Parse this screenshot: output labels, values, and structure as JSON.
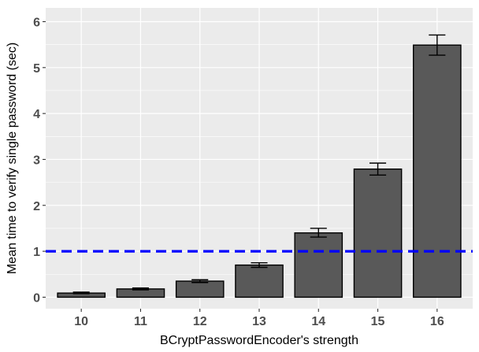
{
  "chart_data": {
    "type": "bar",
    "categories": [
      "10",
      "11",
      "12",
      "13",
      "14",
      "15",
      "16"
    ],
    "values": [
      0.09,
      0.18,
      0.35,
      0.7,
      1.4,
      2.79,
      5.49
    ],
    "error_low": [
      0.08,
      0.16,
      0.32,
      0.65,
      1.31,
      2.66,
      5.27
    ],
    "error_high": [
      0.11,
      0.2,
      0.38,
      0.75,
      1.5,
      2.92,
      5.71
    ],
    "reference_line": {
      "y": 1.0,
      "color": "#0000ff",
      "style": "dashed"
    },
    "xlabel": "BCryptPasswordEncoder's strength",
    "ylabel": "Mean time to verify single password (sec)",
    "ylim": [
      -0.25,
      6.3
    ],
    "yticks": [
      "0",
      "1",
      "2",
      "3",
      "4",
      "5",
      "6"
    ],
    "grid": true,
    "colors": {
      "panel_background": "#ebebeb",
      "grid_line": "#ffffff",
      "bar_fill": "#595959",
      "bar_outline": "#000000",
      "tick_label": "#4d4d4d"
    }
  }
}
